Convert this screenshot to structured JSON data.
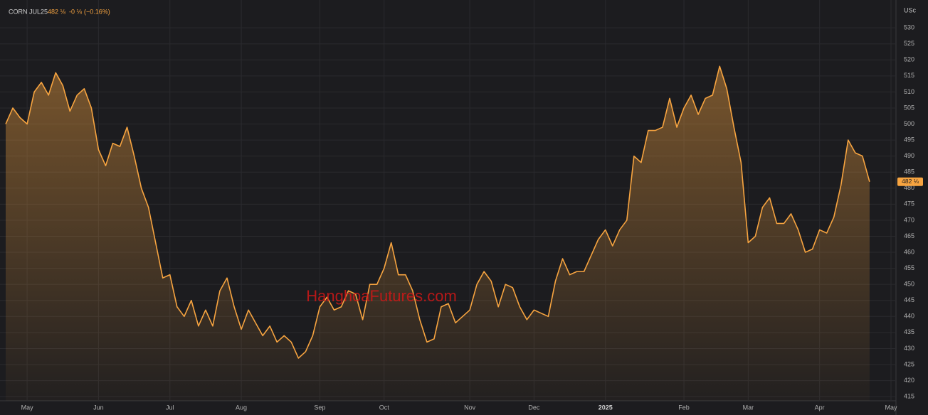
{
  "header": {
    "symbol": "CORN JUL25",
    "price": "482 ⅛",
    "change": "-0 ⅛",
    "change_pct": "(−0.16%)"
  },
  "chart_data": {
    "type": "area",
    "unit": "USc",
    "watermark": "HanghoaFutures.com",
    "categories": [
      null,
      null,
      null,
      "May",
      null,
      null,
      null,
      null,
      null,
      null,
      null,
      null,
      null,
      "Jun",
      null,
      null,
      null,
      null,
      null,
      null,
      null,
      null,
      null,
      "Jul",
      null,
      null,
      null,
      null,
      null,
      null,
      null,
      null,
      null,
      "Aug",
      null,
      null,
      null,
      null,
      null,
      null,
      null,
      null,
      null,
      null,
      "Sep",
      null,
      null,
      null,
      null,
      null,
      null,
      null,
      null,
      "Oct",
      null,
      null,
      null,
      null,
      null,
      null,
      null,
      null,
      null,
      null,
      null,
      "Nov",
      null,
      null,
      null,
      null,
      null,
      null,
      null,
      null,
      "Dec",
      null,
      null,
      null,
      null,
      null,
      null,
      null,
      null,
      null,
      "2025",
      null,
      null,
      null,
      null,
      null,
      null,
      null,
      null,
      null,
      null,
      "Feb",
      null,
      null,
      null,
      null,
      null,
      null,
      null,
      null,
      "Mar",
      null,
      null,
      null,
      null,
      null,
      null,
      null,
      null,
      null,
      "Apr",
      null,
      null,
      null,
      null,
      null,
      null,
      null,
      null,
      null,
      "May"
    ],
    "values": [
      500,
      505,
      502,
      500,
      510,
      513,
      509,
      516,
      512,
      504,
      509,
      511,
      505,
      492,
      487,
      494,
      493,
      499,
      490,
      480,
      474,
      463,
      452,
      453,
      443,
      440,
      445,
      437,
      442,
      437,
      448,
      452,
      443,
      436,
      442,
      438,
      434,
      437,
      432,
      434,
      432,
      427,
      429,
      434,
      443,
      446,
      442,
      443,
      448,
      447,
      439,
      450,
      450,
      455,
      463,
      453,
      453,
      448,
      439,
      432,
      433,
      443,
      444,
      438,
      440,
      442,
      450,
      454,
      451,
      443,
      450,
      449,
      443,
      439,
      442,
      441,
      440,
      451,
      458,
      453,
      454,
      454,
      459,
      464,
      467,
      462,
      467,
      470,
      490,
      488,
      498,
      498,
      499,
      508,
      499,
      505,
      509,
      503,
      508,
      509,
      518,
      511,
      499,
      488,
      463,
      465,
      474,
      477,
      469,
      469,
      472,
      467,
      460,
      461,
      467,
      466,
      471,
      481,
      495,
      491,
      490,
      482,
      null,
      null,
      null
    ],
    "color": "#f7a440",
    "ylim": [
      413.7,
      536.9
    ],
    "yticks": [
      415,
      420,
      425,
      430,
      435,
      440,
      445,
      450,
      455,
      460,
      465,
      470,
      475,
      480,
      485,
      490,
      495,
      500,
      505,
      510,
      515,
      520,
      525,
      530
    ],
    "grid": true
  }
}
